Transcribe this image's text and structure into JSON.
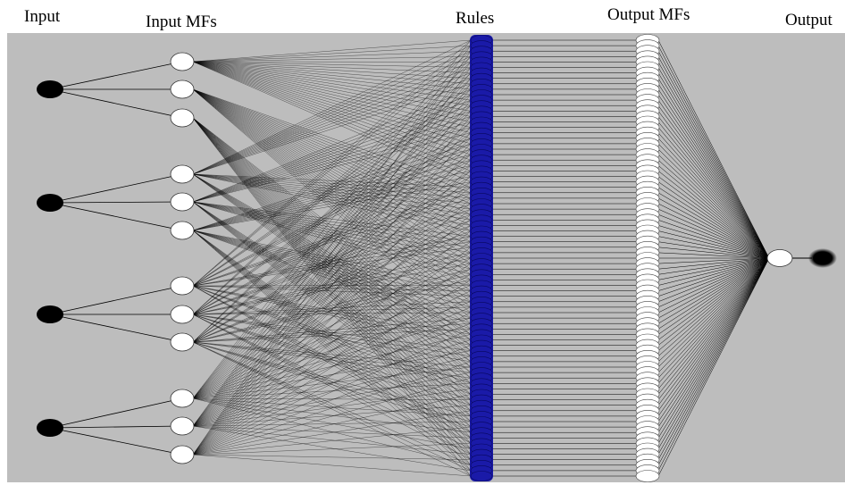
{
  "labels": {
    "input": "Input",
    "input_mfs": "Input MFs",
    "rules": "Rules",
    "output_mfs": "Output MFs",
    "output": "Output"
  },
  "structure": {
    "inputs": 4,
    "mfs_per_input": 3,
    "rules": 81,
    "output_mfs": 81,
    "outputs": 1
  },
  "colors": {
    "background": "#bdbdbd",
    "input_node": "#000000",
    "mf_node": "#ffffff",
    "rule_node": "#1a1aa8",
    "edge": "#000000"
  }
}
